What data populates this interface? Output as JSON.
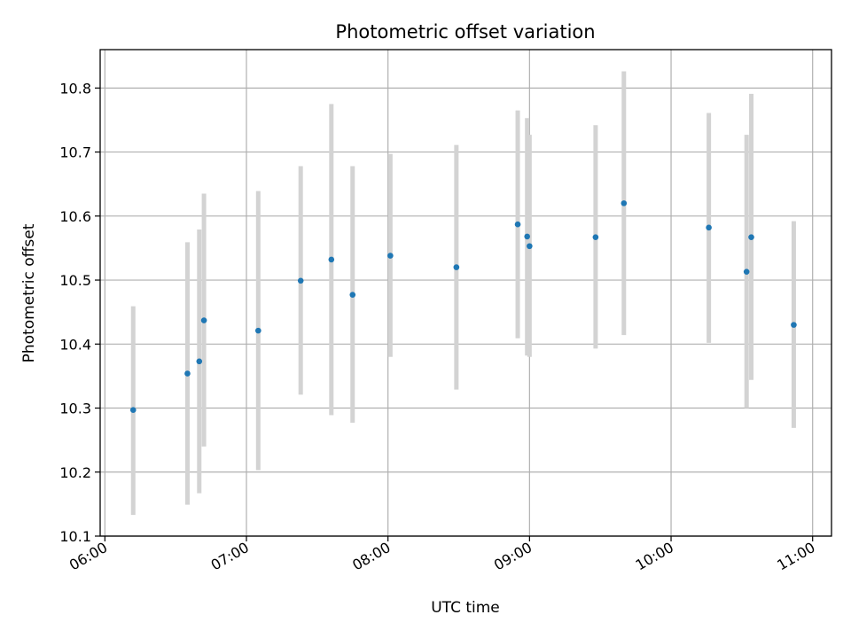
{
  "chart_data": {
    "type": "scatter",
    "title": "Photometric offset variation",
    "xlabel": "UTC time",
    "ylabel": "Photometric offset",
    "x_axis": "time",
    "xlim": [
      "05:58",
      "11:08"
    ],
    "ylim": [
      10.1,
      10.86
    ],
    "x_ticks": [
      "06:00",
      "07:00",
      "08:00",
      "09:00",
      "10:00",
      "11:00"
    ],
    "y_ticks": [
      10.1,
      10.2,
      10.3,
      10.4,
      10.5,
      10.6,
      10.7,
      10.8
    ],
    "grid": true,
    "legend": "none",
    "colors": {
      "marker": "#1f77b4",
      "errorbar": "#d3d3d3"
    },
    "points": [
      {
        "time": "06:12",
        "y": 10.297,
        "low": 10.133,
        "high": 10.459
      },
      {
        "time": "06:35",
        "y": 10.354,
        "low": 10.149,
        "high": 10.559
      },
      {
        "time": "06:40",
        "y": 10.373,
        "low": 10.167,
        "high": 10.579
      },
      {
        "time": "06:42",
        "y": 10.437,
        "low": 10.24,
        "high": 10.635
      },
      {
        "time": "07:05",
        "y": 10.421,
        "low": 10.203,
        "high": 10.639
      },
      {
        "time": "07:23",
        "y": 10.499,
        "low": 10.321,
        "high": 10.678
      },
      {
        "time": "07:36",
        "y": 10.532,
        "low": 10.289,
        "high": 10.775
      },
      {
        "time": "07:45",
        "y": 10.477,
        "low": 10.277,
        "high": 10.678
      },
      {
        "time": "08:01",
        "y": 10.538,
        "low": 10.38,
        "high": 10.697
      },
      {
        "time": "08:29",
        "y": 10.52,
        "low": 10.329,
        "high": 10.711
      },
      {
        "time": "08:55",
        "y": 10.587,
        "low": 10.409,
        "high": 10.765
      },
      {
        "time": "08:59",
        "y": 10.568,
        "low": 10.382,
        "high": 10.753
      },
      {
        "time": "09:00",
        "y": 10.553,
        "low": 10.38,
        "high": 10.727
      },
      {
        "time": "09:28",
        "y": 10.567,
        "low": 10.393,
        "high": 10.742
      },
      {
        "time": "09:40",
        "y": 10.62,
        "low": 10.414,
        "high": 10.826
      },
      {
        "time": "10:16",
        "y": 10.582,
        "low": 10.402,
        "high": 10.761
      },
      {
        "time": "10:32",
        "y": 10.513,
        "low": 10.3,
        "high": 10.727
      },
      {
        "time": "10:34",
        "y": 10.567,
        "low": 10.344,
        "high": 10.791
      },
      {
        "time": "10:52",
        "y": 10.43,
        "low": 10.269,
        "high": 10.592
      }
    ]
  }
}
